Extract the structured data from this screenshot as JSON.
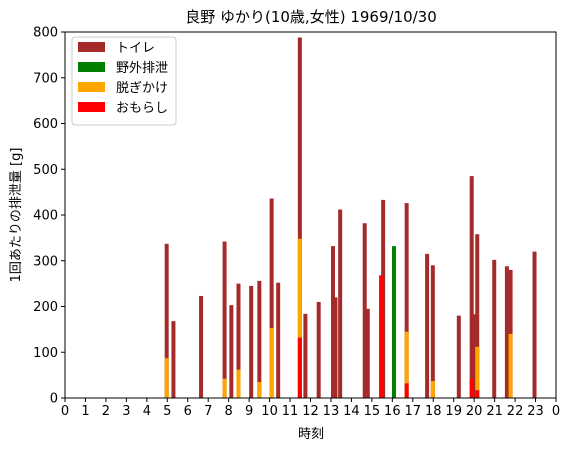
{
  "chart_data": {
    "type": "bar",
    "title": "良野 ゆかり(10歳,女性) 1969/10/30",
    "xlabel": "時刻",
    "ylabel": "1回あたりの排泄量 [g]",
    "xlim": [
      0,
      24
    ],
    "ylim": [
      0,
      800
    ],
    "xticks": [
      0,
      1,
      2,
      3,
      4,
      5,
      6,
      7,
      8,
      9,
      10,
      11,
      12,
      13,
      14,
      15,
      16,
      17,
      18,
      19,
      20,
      21,
      22,
      23,
      24
    ],
    "xtick_labels": [
      "0",
      "1",
      "2",
      "3",
      "4",
      "5",
      "6",
      "7",
      "8",
      "9",
      "10",
      "11",
      "12",
      "13",
      "14",
      "15",
      "16",
      "17",
      "18",
      "19",
      "20",
      "21",
      "22",
      "23",
      "0"
    ],
    "yticks": [
      0,
      100,
      200,
      300,
      400,
      500,
      600,
      700,
      800
    ],
    "legend_position": "top-left",
    "series": [
      {
        "name": "トイレ",
        "color": "#a52a2a",
        "points": [
          {
            "x": 4.97,
            "y": 337
          },
          {
            "x": 5.3,
            "y": 168
          },
          {
            "x": 6.65,
            "y": 223
          },
          {
            "x": 7.8,
            "y": 342
          },
          {
            "x": 8.13,
            "y": 203
          },
          {
            "x": 8.48,
            "y": 250
          },
          {
            "x": 9.1,
            "y": 245
          },
          {
            "x": 9.5,
            "y": 256
          },
          {
            "x": 10.1,
            "y": 436
          },
          {
            "x": 10.42,
            "y": 252
          },
          {
            "x": 11.48,
            "y": 788
          },
          {
            "x": 11.75,
            "y": 184
          },
          {
            "x": 12.4,
            "y": 210
          },
          {
            "x": 13.1,
            "y": 332
          },
          {
            "x": 13.22,
            "y": 220
          },
          {
            "x": 13.45,
            "y": 412
          },
          {
            "x": 14.65,
            "y": 382
          },
          {
            "x": 14.8,
            "y": 195
          },
          {
            "x": 15.55,
            "y": 433
          },
          {
            "x": 16.7,
            "y": 426
          },
          {
            "x": 17.7,
            "y": 315
          },
          {
            "x": 17.98,
            "y": 290
          },
          {
            "x": 19.25,
            "y": 180
          },
          {
            "x": 19.88,
            "y": 485
          },
          {
            "x": 20.02,
            "y": 183
          },
          {
            "x": 20.15,
            "y": 358
          },
          {
            "x": 20.98,
            "y": 302
          },
          {
            "x": 21.6,
            "y": 288
          },
          {
            "x": 21.78,
            "y": 280
          },
          {
            "x": 22.95,
            "y": 320
          }
        ]
      },
      {
        "name": "野外排泄",
        "color": "#008000",
        "points": [
          {
            "x": 16.08,
            "y": 332
          }
        ]
      },
      {
        "name": "脱ぎかけ",
        "color": "#ffa500",
        "points": [
          {
            "x": 4.97,
            "y": 87
          },
          {
            "x": 7.8,
            "y": 42
          },
          {
            "x": 8.48,
            "y": 62
          },
          {
            "x": 9.5,
            "y": 35
          },
          {
            "x": 10.1,
            "y": 153
          },
          {
            "x": 11.48,
            "y": 348
          },
          {
            "x": 16.7,
            "y": 145
          },
          {
            "x": 17.98,
            "y": 37
          },
          {
            "x": 20.15,
            "y": 112
          },
          {
            "x": 21.78,
            "y": 140
          }
        ]
      },
      {
        "name": "おもらし",
        "color": "#ff0000",
        "points": [
          {
            "x": 11.48,
            "y": 132
          },
          {
            "x": 15.45,
            "y": 268
          },
          {
            "x": 16.7,
            "y": 32
          },
          {
            "x": 19.88,
            "y": 42
          },
          {
            "x": 20.15,
            "y": 17
          }
        ]
      }
    ]
  }
}
